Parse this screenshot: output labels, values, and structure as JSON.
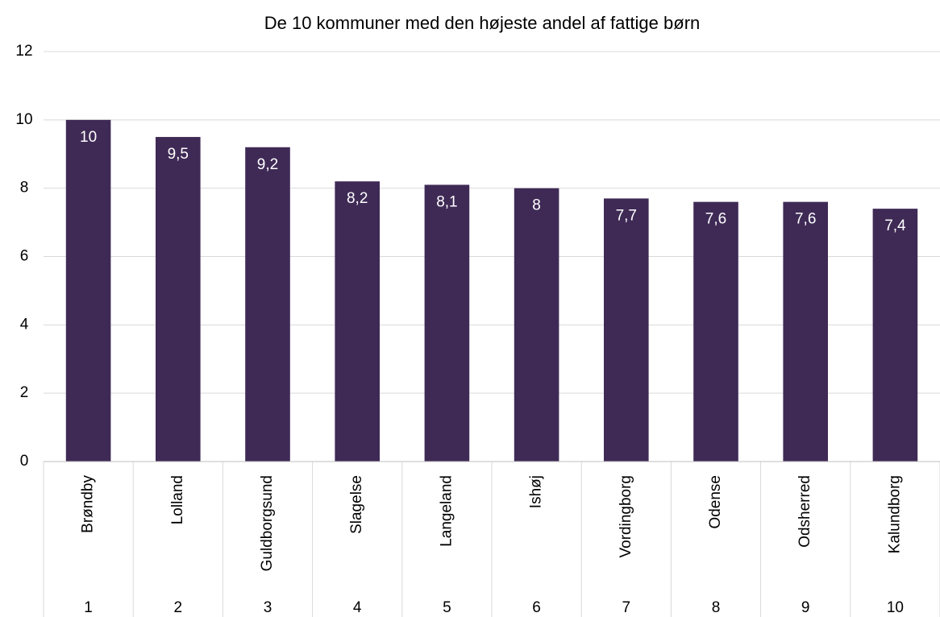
{
  "chart_data": {
    "type": "bar",
    "title": "De 10 kommuner med den højeste andel af fattige børn",
    "categories": [
      "Brøndby",
      "Lolland",
      "Guldborgsund",
      "Slagelse",
      "Langeland",
      "Ishøj",
      "Vordingborg",
      "Odense",
      "Odsherred",
      "Kalundborg"
    ],
    "ranks": [
      "1",
      "2",
      "3",
      "4",
      "5",
      "6",
      "7",
      "8",
      "9",
      "10"
    ],
    "values": [
      10,
      9.5,
      9.2,
      8.2,
      8.1,
      8,
      7.7,
      7.6,
      7.6,
      7.4
    ],
    "value_labels": [
      "10",
      "9,5",
      "9,2",
      "8,2",
      "8,1",
      "8",
      "7,7",
      "7,6",
      "7,6",
      "7,4"
    ],
    "color": "#3f2a56",
    "ylim": [
      0,
      12
    ],
    "yticks": [
      0,
      2,
      4,
      6,
      8,
      10,
      12
    ],
    "grid": true
  }
}
